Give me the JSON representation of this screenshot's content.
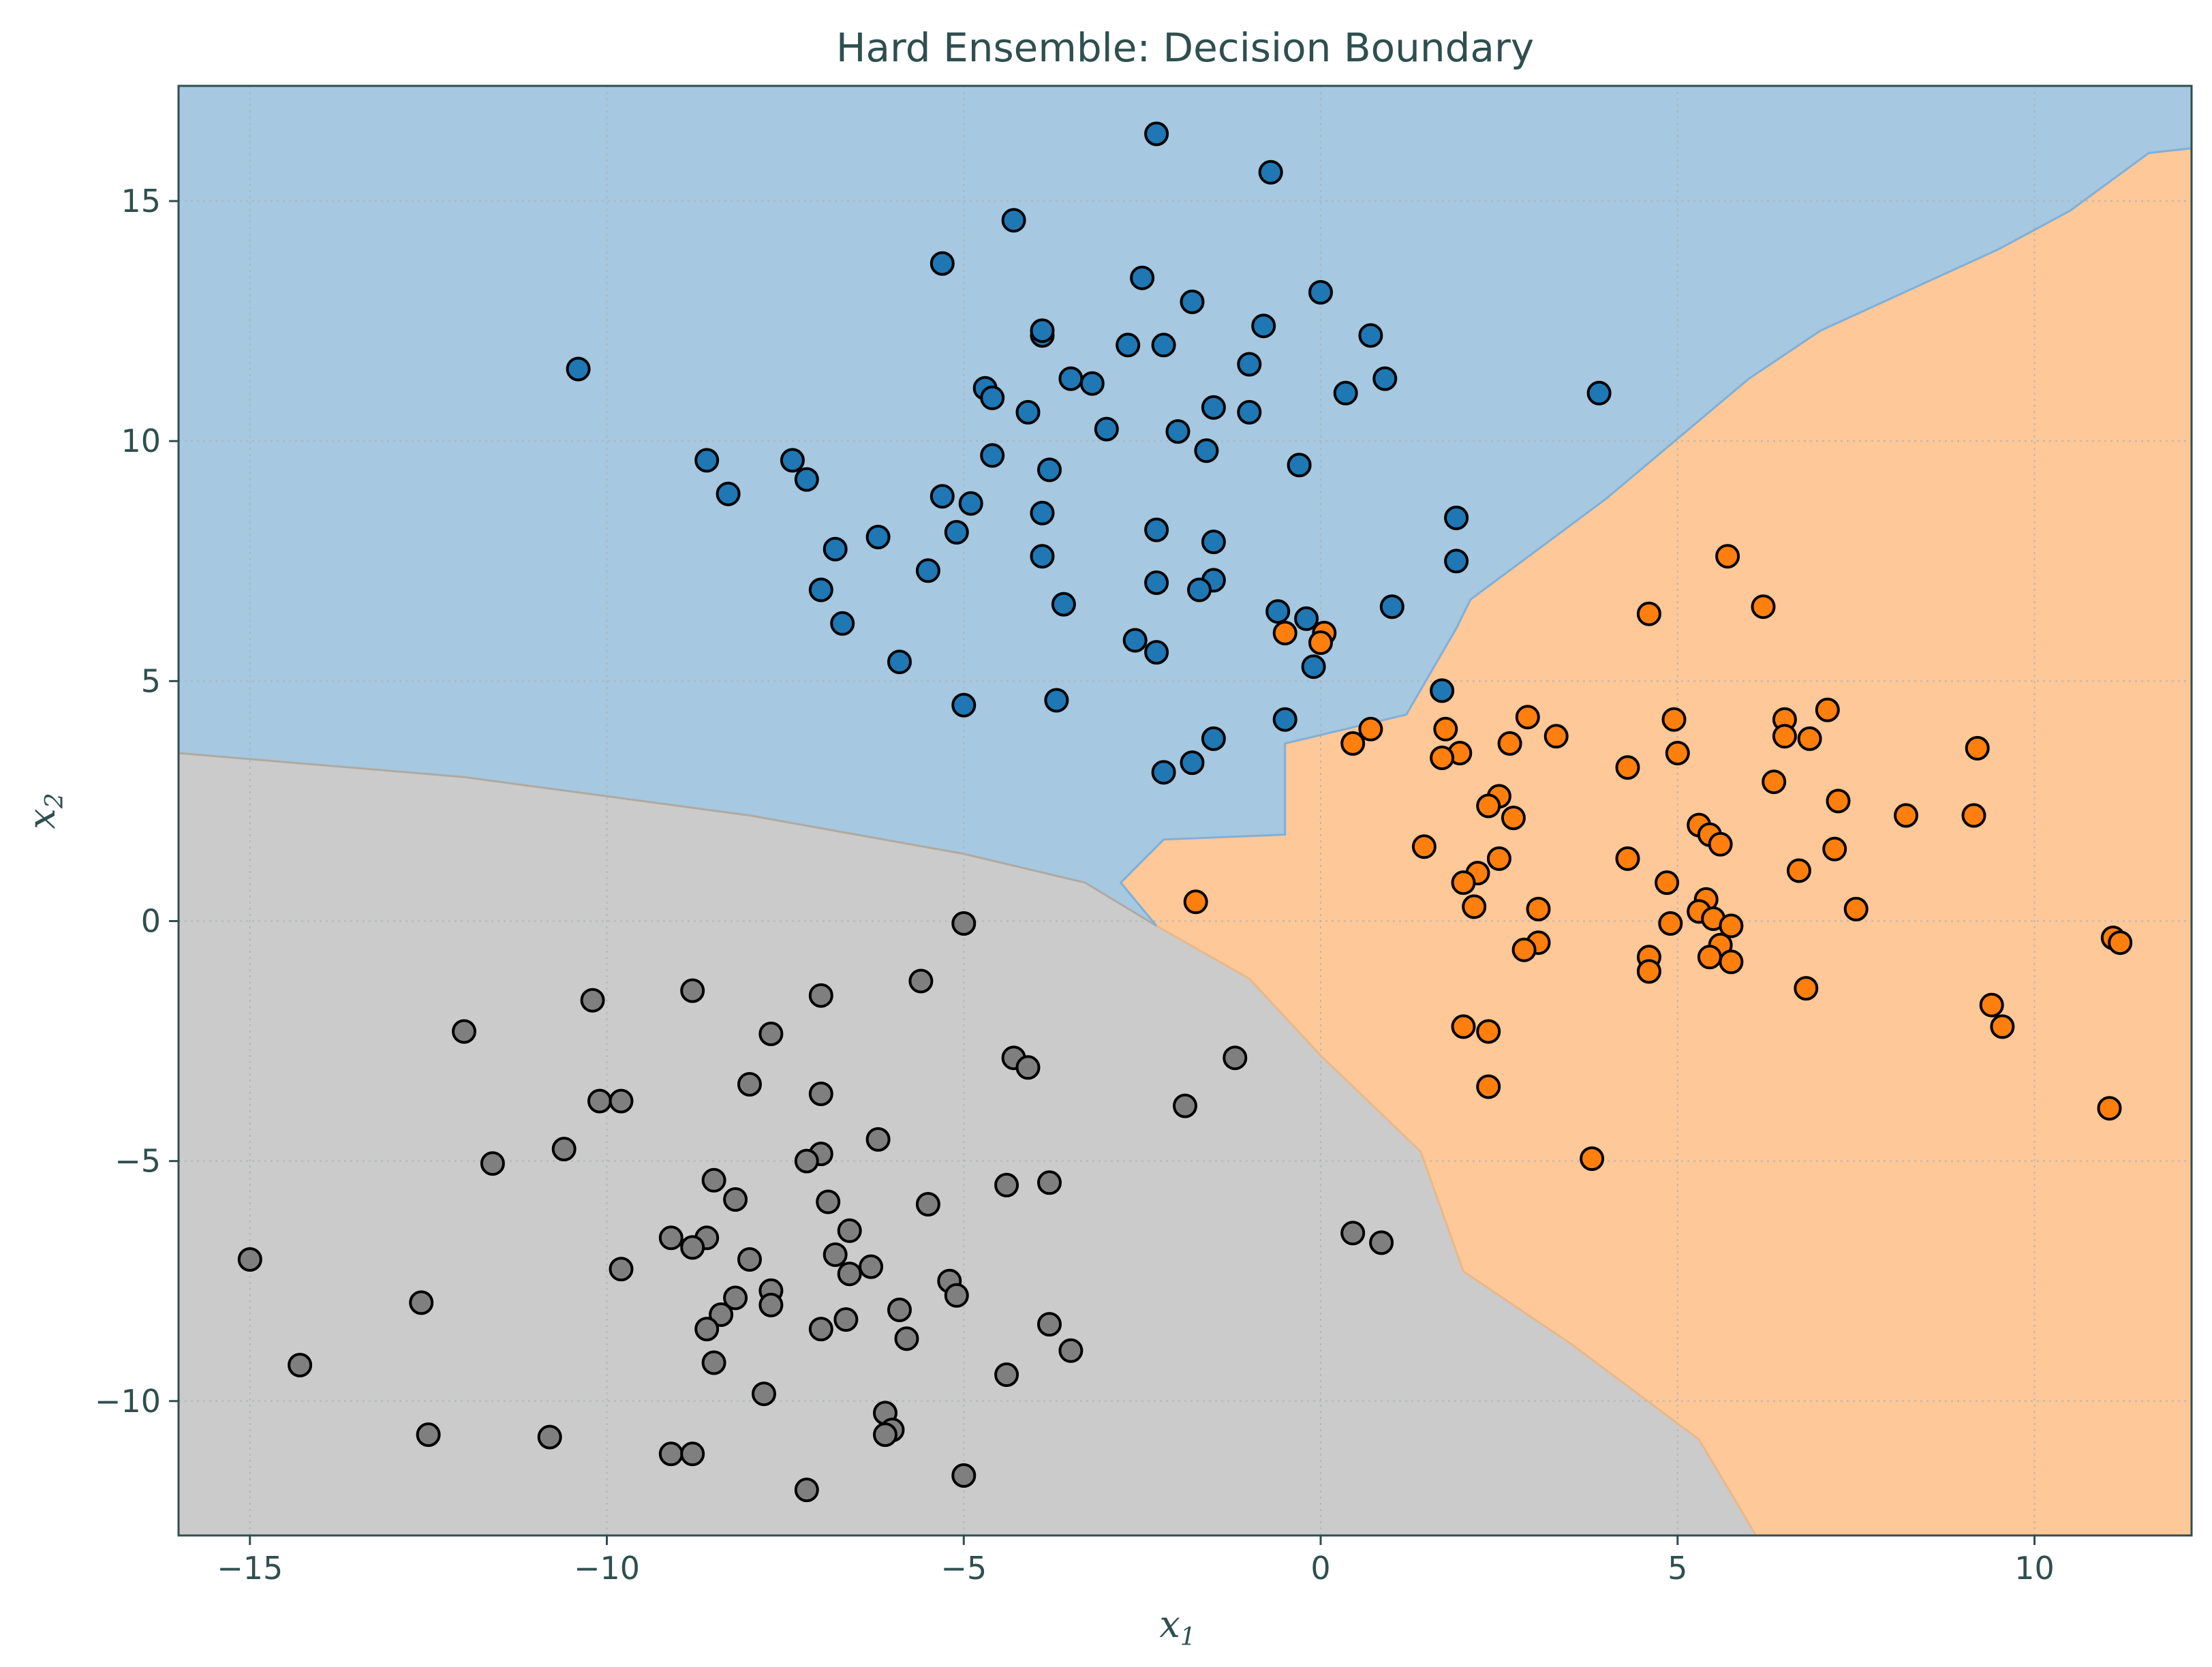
{
  "chart_data": {
    "type": "scatter",
    "title": "Hard Ensemble: Decision Boundary",
    "xlabel": "x",
    "xlabel_sub": "1",
    "ylabel": "x",
    "ylabel_sub": "2",
    "xlim": [
      -16.0,
      12.2
    ],
    "ylim": [
      -12.8,
      17.4
    ],
    "xticks": [
      -15,
      -10,
      -5,
      0,
      5,
      10
    ],
    "yticks": [
      -10,
      -5,
      0,
      5,
      10,
      15
    ],
    "xtick_labels": [
      "−15",
      "−10",
      "−5",
      "0",
      "5",
      "10"
    ],
    "ytick_labels": [
      "−10",
      "−5",
      "0",
      "5",
      "10",
      "15"
    ],
    "grid": true,
    "region_colors": {
      "blue": "#a6c8e0",
      "orange": "#ffc899",
      "gray": "#cbcbcb"
    },
    "boundary_blue_gray": [
      [
        -16.0,
        3.5
      ],
      [
        -12,
        3.0
      ],
      [
        -8,
        2.2
      ],
      [
        -5,
        1.4
      ],
      [
        -3.3,
        0.8
      ],
      [
        -2.3,
        -0.1
      ]
    ],
    "boundary_gray_orange": [
      [
        -2.3,
        -0.1
      ],
      [
        -1.0,
        -1.2
      ],
      [
        0,
        -2.8
      ],
      [
        1.4,
        -4.8
      ],
      [
        2.0,
        -7.3
      ],
      [
        3.5,
        -8.8
      ],
      [
        5.3,
        -10.8
      ],
      [
        6.1,
        -12.8
      ]
    ],
    "boundary_blue_orange": [
      [
        -2.3,
        -0.1
      ],
      [
        -2.8,
        0.8
      ],
      [
        -2.2,
        1.7
      ],
      [
        -0.5,
        1.8
      ],
      [
        -0.5,
        3.7
      ],
      [
        1.2,
        4.3
      ],
      [
        1.9,
        6.1
      ],
      [
        2.1,
        6.7
      ],
      [
        4.0,
        8.8
      ],
      [
        6.0,
        11.3
      ],
      [
        7.0,
        12.3
      ],
      [
        9.5,
        14.0
      ],
      [
        10.5,
        14.8
      ],
      [
        11.6,
        16.0
      ],
      [
        12.2,
        16.1
      ]
    ],
    "series": [
      {
        "color": "#1f77b4",
        "points": [
          [
            -2.3,
            16.4
          ],
          [
            -0.7,
            15.6
          ],
          [
            -4.3,
            14.6
          ],
          [
            -5.3,
            13.7
          ],
          [
            -2.5,
            13.4
          ],
          [
            0,
            13.1
          ],
          [
            -1.8,
            12.9
          ],
          [
            -0.8,
            12.4
          ],
          [
            -3.9,
            12.2
          ],
          [
            -2.7,
            12.0
          ],
          [
            -2.2,
            12.0
          ],
          [
            0.7,
            12.2
          ],
          [
            -3.9,
            12.3
          ],
          [
            -10.4,
            11.5
          ],
          [
            -1.0,
            11.6
          ],
          [
            0.9,
            11.3
          ],
          [
            -3.5,
            11.3
          ],
          [
            -3.2,
            11.2
          ],
          [
            -4.7,
            11.1
          ],
          [
            -4.6,
            10.9
          ],
          [
            0.35,
            11.0
          ],
          [
            3.9,
            11.0
          ],
          [
            -4.1,
            10.6
          ],
          [
            -1.5,
            10.7
          ],
          [
            -1.0,
            10.6
          ],
          [
            -2.0,
            10.2
          ],
          [
            -3.0,
            10.25
          ],
          [
            -1.6,
            9.8
          ],
          [
            -8.6,
            9.6
          ],
          [
            -7.4,
            9.6
          ],
          [
            -4.6,
            9.7
          ],
          [
            -3.8,
            9.4
          ],
          [
            -0.3,
            9.5
          ],
          [
            -7.2,
            9.2
          ],
          [
            -8.3,
            8.9
          ],
          [
            -5.3,
            8.85
          ],
          [
            -4.9,
            8.7
          ],
          [
            -3.9,
            8.5
          ],
          [
            1.9,
            8.4
          ],
          [
            -5.1,
            8.1
          ],
          [
            -6.2,
            8.0
          ],
          [
            -2.3,
            8.15
          ],
          [
            -1.5,
            7.9
          ],
          [
            -6.8,
            7.75
          ],
          [
            -3.9,
            7.6
          ],
          [
            1.9,
            7.5
          ],
          [
            -5.5,
            7.3
          ],
          [
            -2.3,
            7.05
          ],
          [
            -1.5,
            7.1
          ],
          [
            -7.0,
            6.9
          ],
          [
            -1.7,
            6.9
          ],
          [
            -3.6,
            6.6
          ],
          [
            1.0,
            6.55
          ],
          [
            -0.6,
            6.45
          ],
          [
            -6.7,
            6.2
          ],
          [
            -0.2,
            6.3
          ],
          [
            -2.6,
            5.85
          ],
          [
            -2.3,
            5.6
          ],
          [
            -5.9,
            5.4
          ],
          [
            -0.1,
            5.3
          ],
          [
            -3.7,
            4.6
          ],
          [
            -5.0,
            4.5
          ],
          [
            -0.5,
            4.2
          ],
          [
            1.7,
            4.8
          ],
          [
            -1.5,
            3.8
          ],
          [
            -1.8,
            3.3
          ],
          [
            -2.2,
            3.1
          ]
        ]
      },
      {
        "color": "#ff7f0e",
        "points": [
          [
            5.7,
            7.6
          ],
          [
            4.6,
            6.4
          ],
          [
            6.2,
            6.55
          ],
          [
            0.05,
            6.0
          ],
          [
            -0.5,
            6.0
          ],
          [
            0,
            5.8
          ],
          [
            6.5,
            4.2
          ],
          [
            7.1,
            4.4
          ],
          [
            2.9,
            4.25
          ],
          [
            4.95,
            4.2
          ],
          [
            1.75,
            4.0
          ],
          [
            0.7,
            4.0
          ],
          [
            6.5,
            3.85
          ],
          [
            6.85,
            3.8
          ],
          [
            3.3,
            3.85
          ],
          [
            0.45,
            3.7
          ],
          [
            2.65,
            3.7
          ],
          [
            1.95,
            3.5
          ],
          [
            1.7,
            3.4
          ],
          [
            5.0,
            3.5
          ],
          [
            9.2,
            3.6
          ],
          [
            4.3,
            3.2
          ],
          [
            6.35,
            2.9
          ],
          [
            2.5,
            2.6
          ],
          [
            7.25,
            2.5
          ],
          [
            2.35,
            2.4
          ],
          [
            8.2,
            2.2
          ],
          [
            9.15,
            2.2
          ],
          [
            2.7,
            2.15
          ],
          [
            5.3,
            2.0
          ],
          [
            5.45,
            1.8
          ],
          [
            5.6,
            1.6
          ],
          [
            1.45,
            1.55
          ],
          [
            7.2,
            1.5
          ],
          [
            2.5,
            1.3
          ],
          [
            4.3,
            1.3
          ],
          [
            6.7,
            1.05
          ],
          [
            2.2,
            1.0
          ],
          [
            2.0,
            0.8
          ],
          [
            4.85,
            0.8
          ],
          [
            -1.75,
            0.4
          ],
          [
            5.4,
            0.45
          ],
          [
            2.15,
            0.3
          ],
          [
            3.05,
            0.25
          ],
          [
            5.3,
            0.2
          ],
          [
            5.5,
            0.05
          ],
          [
            7.5,
            0.25
          ],
          [
            4.9,
            -0.05
          ],
          [
            5.75,
            -0.1
          ],
          [
            3.05,
            -0.45
          ],
          [
            2.85,
            -0.6
          ],
          [
            5.6,
            -0.5
          ],
          [
            4.6,
            -0.75
          ],
          [
            5.45,
            -0.75
          ],
          [
            5.75,
            -0.85
          ],
          [
            4.6,
            -1.05
          ],
          [
            11.1,
            -0.35
          ],
          [
            11.2,
            -0.45
          ],
          [
            6.8,
            -1.4
          ],
          [
            9.4,
            -1.75
          ],
          [
            9.55,
            -2.2
          ],
          [
            2.0,
            -2.2
          ],
          [
            2.35,
            -2.3
          ],
          [
            2.35,
            -3.45
          ],
          [
            11.05,
            -3.9
          ],
          [
            3.8,
            -4.95
          ]
        ]
      },
      {
        "color": "#7f7f7f",
        "points": [
          [
            -5.0,
            -0.05
          ],
          [
            -5.6,
            -1.25
          ],
          [
            -8.8,
            -1.45
          ],
          [
            -7.0,
            -1.55
          ],
          [
            -10.2,
            -1.65
          ],
          [
            -12.0,
            -2.3
          ],
          [
            -7.7,
            -2.35
          ],
          [
            -4.3,
            -2.85
          ],
          [
            -4.1,
            -3.05
          ],
          [
            -1.2,
            -2.85
          ],
          [
            -8.0,
            -3.4
          ],
          [
            -10.1,
            -3.75
          ],
          [
            -9.8,
            -3.75
          ],
          [
            -7.0,
            -3.6
          ],
          [
            -1.9,
            -3.85
          ],
          [
            -10.6,
            -4.75
          ],
          [
            -6.2,
            -4.55
          ],
          [
            -7.0,
            -4.85
          ],
          [
            -11.6,
            -5.05
          ],
          [
            -7.2,
            -5.0
          ],
          [
            -8.5,
            -5.4
          ],
          [
            -4.4,
            -5.5
          ],
          [
            -3.8,
            -5.45
          ],
          [
            -8.2,
            -5.8
          ],
          [
            -6.9,
            -5.85
          ],
          [
            -5.5,
            -5.9
          ],
          [
            -6.6,
            -6.45
          ],
          [
            -9.1,
            -6.6
          ],
          [
            -8.6,
            -6.6
          ],
          [
            -8.8,
            -6.8
          ],
          [
            0.45,
            -6.5
          ],
          [
            0.85,
            -6.7
          ],
          [
            -15.0,
            -7.05
          ],
          [
            -8.0,
            -7.05
          ],
          [
            -6.8,
            -6.95
          ],
          [
            -6.3,
            -7.2
          ],
          [
            -9.8,
            -7.25
          ],
          [
            -6.6,
            -7.35
          ],
          [
            -5.2,
            -7.5
          ],
          [
            -7.7,
            -7.7
          ],
          [
            -8.2,
            -7.85
          ],
          [
            -5.1,
            -7.8
          ],
          [
            -12.6,
            -7.95
          ],
          [
            -7.7,
            -8.0
          ],
          [
            -5.9,
            -8.1
          ],
          [
            -8.4,
            -8.2
          ],
          [
            -6.65,
            -8.3
          ],
          [
            -3.8,
            -8.4
          ],
          [
            -7.0,
            -8.5
          ],
          [
            -8.6,
            -8.5
          ],
          [
            -5.8,
            -8.7
          ],
          [
            -3.5,
            -8.95
          ],
          [
            -8.5,
            -9.2
          ],
          [
            -14.3,
            -9.25
          ],
          [
            -4.4,
            -9.45
          ],
          [
            -7.8,
            -9.85
          ],
          [
            -6.1,
            -10.25
          ],
          [
            -6.0,
            -10.6
          ],
          [
            -6.1,
            -10.7
          ],
          [
            -12.5,
            -10.7
          ],
          [
            -10.8,
            -10.75
          ],
          [
            -9.1,
            -11.1
          ],
          [
            -8.8,
            -11.1
          ],
          [
            -5.0,
            -11.55
          ],
          [
            -7.2,
            -11.85
          ]
        ]
      }
    ]
  }
}
